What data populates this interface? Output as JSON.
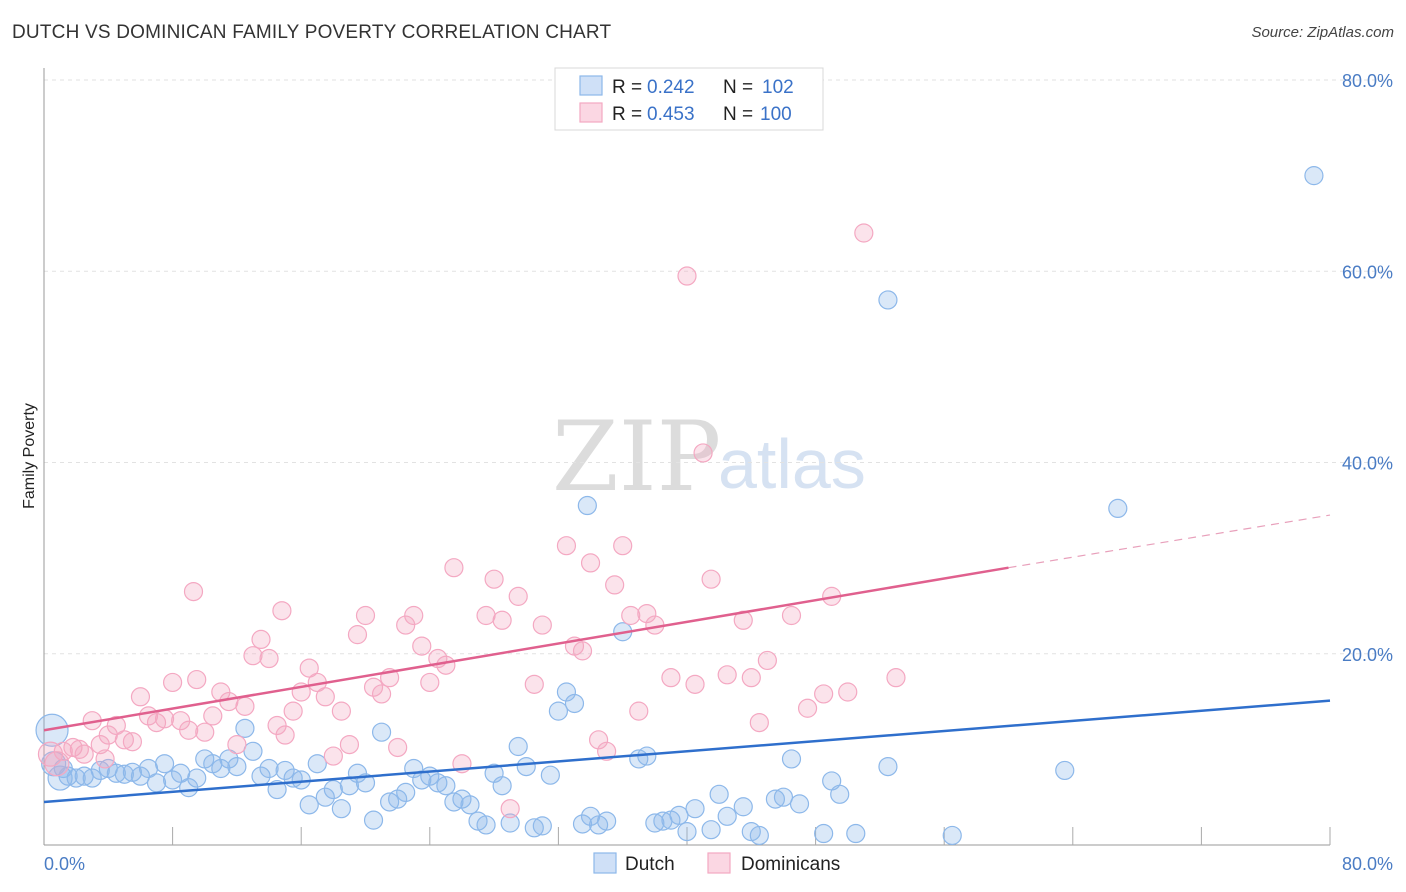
{
  "header": {
    "title": "DUTCH VS DOMINICAN FAMILY POVERTY CORRELATION CHART",
    "source": "Source: ZipAtlas.com"
  },
  "watermark": {
    "zip": "ZIP",
    "atlas": "atlas"
  },
  "legend": {
    "rows": [
      {
        "r_label": "R =",
        "r_value": "0.242",
        "n_label": "N =",
        "n_value": "102",
        "color": "#8db8ea"
      },
      {
        "r_label": "R =",
        "r_value": "0.453",
        "n_label": "N =",
        "n_value": "100",
        "color": "#f4a8c2"
      }
    ]
  },
  "chart_data": {
    "type": "scatter",
    "title": "DUTCH VS DOMINICAN FAMILY POVERTY CORRELATION CHART",
    "xlabel": "",
    "ylabel": "Family Poverty",
    "xlim": [
      0,
      80
    ],
    "ylim": [
      0,
      80
    ],
    "x_tick_labels": [
      "0.0%",
      "80.0%"
    ],
    "y_tick_labels": [
      "20.0%",
      "40.0%",
      "60.0%",
      "80.0%"
    ],
    "y_ticks": [
      20,
      40,
      60,
      80
    ],
    "grid": true,
    "legend_position": "bottom-center",
    "series": [
      {
        "name": "Dutch",
        "color": "#8db8ea",
        "line_color": "#2f6fcc",
        "trend": {
          "x0": 0,
          "y0": 4.5,
          "x1": 80,
          "y1": 15.1
        },
        "points": [
          [
            0.5,
            12.0,
            3
          ],
          [
            0.6,
            8.5,
            2
          ],
          [
            1.0,
            7.0,
            2
          ],
          [
            1.2,
            8.0,
            1
          ],
          [
            1.5,
            7.2,
            1
          ],
          [
            2.0,
            7.0,
            1
          ],
          [
            2.5,
            7.2,
            1
          ],
          [
            3.0,
            7.0,
            1
          ],
          [
            3.5,
            7.8,
            1
          ],
          [
            4.0,
            8.0,
            1
          ],
          [
            4.5,
            7.5,
            1
          ],
          [
            5.0,
            7.4,
            1
          ],
          [
            5.5,
            7.6,
            1
          ],
          [
            6.0,
            7.2,
            1
          ],
          [
            6.5,
            8.0,
            1
          ],
          [
            7.0,
            6.5,
            1
          ],
          [
            7.5,
            8.5,
            1
          ],
          [
            8.0,
            6.8,
            1
          ],
          [
            8.5,
            7.5,
            1
          ],
          [
            9.0,
            6.0,
            1
          ],
          [
            9.5,
            7.0,
            1
          ],
          [
            10.0,
            9.0,
            1
          ],
          [
            10.5,
            8.5,
            1
          ],
          [
            11.0,
            8.0,
            1
          ],
          [
            11.5,
            9.0,
            1
          ],
          [
            12.0,
            8.2,
            1
          ],
          [
            12.5,
            12.2,
            1
          ],
          [
            13.0,
            9.8,
            1
          ],
          [
            13.5,
            7.2,
            1
          ],
          [
            14.0,
            8.0,
            1
          ],
          [
            14.5,
            5.8,
            1
          ],
          [
            15.0,
            7.8,
            1
          ],
          [
            15.5,
            7.0,
            1
          ],
          [
            16.0,
            6.8,
            1
          ],
          [
            16.5,
            4.2,
            1
          ],
          [
            17.0,
            8.5,
            1
          ],
          [
            17.5,
            5.0,
            1
          ],
          [
            18.0,
            5.8,
            1
          ],
          [
            18.5,
            3.8,
            1
          ],
          [
            19.0,
            6.2,
            1
          ],
          [
            19.5,
            7.5,
            1
          ],
          [
            20.0,
            6.5,
            1
          ],
          [
            20.5,
            2.6,
            1
          ],
          [
            21.0,
            11.8,
            1
          ],
          [
            21.5,
            4.5,
            1
          ],
          [
            22.0,
            4.8,
            1
          ],
          [
            22.5,
            5.5,
            1
          ],
          [
            23.0,
            8.0,
            1
          ],
          [
            23.5,
            6.8,
            1
          ],
          [
            24.0,
            7.2,
            1
          ],
          [
            24.5,
            6.5,
            1
          ],
          [
            25.0,
            6.2,
            1
          ],
          [
            25.5,
            4.5,
            1
          ],
          [
            26.0,
            4.8,
            1
          ],
          [
            26.5,
            4.2,
            1
          ],
          [
            27.0,
            2.5,
            1
          ],
          [
            27.5,
            2.1,
            1
          ],
          [
            28.0,
            7.5,
            1
          ],
          [
            28.5,
            6.2,
            1
          ],
          [
            29.0,
            2.3,
            1
          ],
          [
            29.5,
            10.3,
            1
          ],
          [
            30.0,
            8.2,
            1
          ],
          [
            30.5,
            1.8,
            1
          ],
          [
            31.0,
            2.0,
            1
          ],
          [
            31.5,
            7.3,
            1
          ],
          [
            32.0,
            14.0,
            1
          ],
          [
            32.5,
            16.0,
            1
          ],
          [
            33.0,
            14.8,
            1
          ],
          [
            33.5,
            2.2,
            1
          ],
          [
            34.0,
            3.0,
            1
          ],
          [
            34.5,
            2.1,
            1
          ],
          [
            35.0,
            2.5,
            1
          ],
          [
            36.0,
            22.3,
            1
          ],
          [
            37.0,
            9.0,
            1
          ],
          [
            37.5,
            9.3,
            1
          ],
          [
            38.0,
            2.3,
            1
          ],
          [
            38.5,
            2.5,
            1
          ],
          [
            39.0,
            2.6,
            1
          ],
          [
            39.5,
            3.1,
            1
          ],
          [
            40.0,
            1.4,
            1
          ],
          [
            40.5,
            3.8,
            1
          ],
          [
            41.5,
            1.6,
            1
          ],
          [
            42.0,
            5.3,
            1
          ],
          [
            42.5,
            3.0,
            1
          ],
          [
            43.5,
            4.0,
            1
          ],
          [
            44.0,
            1.4,
            1
          ],
          [
            44.5,
            1.0,
            1
          ],
          [
            45.5,
            4.8,
            1
          ],
          [
            46.0,
            5.0,
            1
          ],
          [
            46.5,
            9.0,
            1
          ],
          [
            47.0,
            4.3,
            1
          ],
          [
            48.5,
            1.2,
            1
          ],
          [
            49.0,
            6.7,
            1
          ],
          [
            49.5,
            5.3,
            1
          ],
          [
            50.5,
            1.2,
            1
          ],
          [
            52.5,
            8.2,
            1
          ],
          [
            56.5,
            1.0,
            1
          ],
          [
            63.5,
            7.8,
            1
          ],
          [
            33.8,
            35.5,
            1
          ],
          [
            66.8,
            35.2,
            1
          ],
          [
            52.5,
            57.0,
            1
          ],
          [
            79.0,
            70.0,
            1
          ]
        ]
      },
      {
        "name": "Dominicans",
        "color": "#f4a8c2",
        "line_color": "#e0608e",
        "trend": {
          "x0": 0,
          "y0": 12.0,
          "x1": 60,
          "y1": 29.0,
          "dashed_to": {
            "x": 80,
            "y": 34.5
          }
        },
        "points": [
          [
            0.4,
            9.5,
            2
          ],
          [
            0.8,
            8.5,
            2
          ],
          [
            1.2,
            9.8,
            1
          ],
          [
            1.8,
            10.2,
            1
          ],
          [
            2.5,
            9.5,
            1
          ],
          [
            3.0,
            13.0,
            1
          ],
          [
            3.5,
            10.5,
            1
          ],
          [
            4.0,
            11.5,
            1
          ],
          [
            4.5,
            12.5,
            1
          ],
          [
            5.0,
            11.0,
            1
          ],
          [
            5.5,
            10.8,
            1
          ],
          [
            6.0,
            15.5,
            1
          ],
          [
            6.5,
            13.5,
            1
          ],
          [
            7.0,
            12.8,
            1
          ],
          [
            7.5,
            13.2,
            1
          ],
          [
            8.0,
            17.0,
            1
          ],
          [
            8.5,
            13.0,
            1
          ],
          [
            9.0,
            12.0,
            1
          ],
          [
            9.5,
            17.3,
            1
          ],
          [
            10.0,
            11.8,
            1
          ],
          [
            10.5,
            13.5,
            1
          ],
          [
            11.0,
            16.0,
            1
          ],
          [
            11.5,
            15.0,
            1
          ],
          [
            12.0,
            10.5,
            1
          ],
          [
            12.5,
            14.5,
            1
          ],
          [
            13.0,
            19.8,
            1
          ],
          [
            13.5,
            21.5,
            1
          ],
          [
            14.0,
            19.5,
            1
          ],
          [
            14.5,
            12.5,
            1
          ],
          [
            15.0,
            11.5,
            1
          ],
          [
            15.5,
            14.0,
            1
          ],
          [
            16.0,
            16.0,
            1
          ],
          [
            16.5,
            18.5,
            1
          ],
          [
            17.0,
            17.0,
            1
          ],
          [
            17.5,
            15.5,
            1
          ],
          [
            18.0,
            9.3,
            1
          ],
          [
            18.5,
            14.0,
            1
          ],
          [
            19.0,
            10.5,
            1
          ],
          [
            19.5,
            22.0,
            1
          ],
          [
            20.0,
            24.0,
            1
          ],
          [
            20.5,
            16.5,
            1
          ],
          [
            21.0,
            15.8,
            1
          ],
          [
            21.5,
            17.5,
            1
          ],
          [
            22.0,
            10.2,
            1
          ],
          [
            22.5,
            23.0,
            1
          ],
          [
            23.0,
            24.0,
            1
          ],
          [
            23.5,
            20.8,
            1
          ],
          [
            24.0,
            17.0,
            1
          ],
          [
            24.5,
            19.5,
            1
          ],
          [
            25.0,
            18.8,
            1
          ],
          [
            25.5,
            29.0,
            1
          ],
          [
            26.0,
            8.5,
            1
          ],
          [
            27.5,
            24.0,
            1
          ],
          [
            28.0,
            27.8,
            1
          ],
          [
            28.5,
            23.5,
            1
          ],
          [
            29.0,
            3.8,
            1
          ],
          [
            29.5,
            26.0,
            1
          ],
          [
            30.5,
            16.8,
            1
          ],
          [
            31.0,
            23.0,
            1
          ],
          [
            32.5,
            31.3,
            1
          ],
          [
            33.0,
            20.8,
            1
          ],
          [
            33.5,
            20.3,
            1
          ],
          [
            34.0,
            29.5,
            1
          ],
          [
            34.5,
            11.0,
            1
          ],
          [
            35.0,
            9.8,
            1
          ],
          [
            35.5,
            27.2,
            1
          ],
          [
            36.0,
            31.3,
            1
          ],
          [
            36.5,
            24.0,
            1
          ],
          [
            37.0,
            14.0,
            1
          ],
          [
            37.5,
            24.2,
            1
          ],
          [
            38.0,
            23.0,
            1
          ],
          [
            39.0,
            17.5,
            1
          ],
          [
            40.0,
            59.5,
            1
          ],
          [
            40.5,
            16.8,
            1
          ],
          [
            41.0,
            41.0,
            1
          ],
          [
            41.5,
            27.8,
            1
          ],
          [
            42.5,
            17.8,
            1
          ],
          [
            43.5,
            23.5,
            1
          ],
          [
            44.0,
            17.5,
            1
          ],
          [
            44.5,
            12.8,
            1
          ],
          [
            45.0,
            19.3,
            1
          ],
          [
            46.5,
            24.0,
            1
          ],
          [
            47.5,
            14.3,
            1
          ],
          [
            48.5,
            15.8,
            1
          ],
          [
            49.0,
            26.0,
            1
          ],
          [
            50.0,
            16.0,
            1
          ],
          [
            51.0,
            64.0,
            1
          ],
          [
            53.0,
            17.5,
            1
          ],
          [
            9.3,
            26.5,
            1
          ],
          [
            14.8,
            24.5,
            1
          ],
          [
            2.2,
            10.0,
            1
          ],
          [
            3.8,
            9.0,
            1
          ]
        ]
      }
    ]
  }
}
